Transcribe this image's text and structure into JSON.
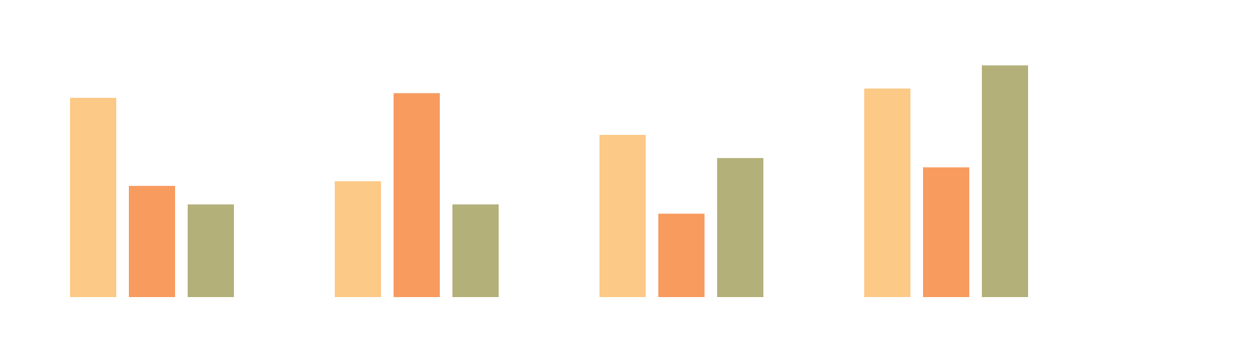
{
  "chart_data": {
    "type": "bar",
    "title": "",
    "xlabel": "",
    "ylabel": "",
    "categories": [
      "",
      "",
      "",
      ""
    ],
    "ylim": [
      0,
      10.8
    ],
    "grid": false,
    "legend": "none",
    "series": [
      {
        "values": [
          8.6,
          5.0,
          7.0,
          9.0
        ],
        "color": "#FDC986"
      },
      {
        "values": [
          4.8,
          8.8,
          3.6,
          5.6
        ],
        "color": "#F89B5F"
      },
      {
        "values": [
          4.0,
          4.0,
          6.0,
          10.0
        ],
        "color": "#B3B07A"
      }
    ]
  }
}
